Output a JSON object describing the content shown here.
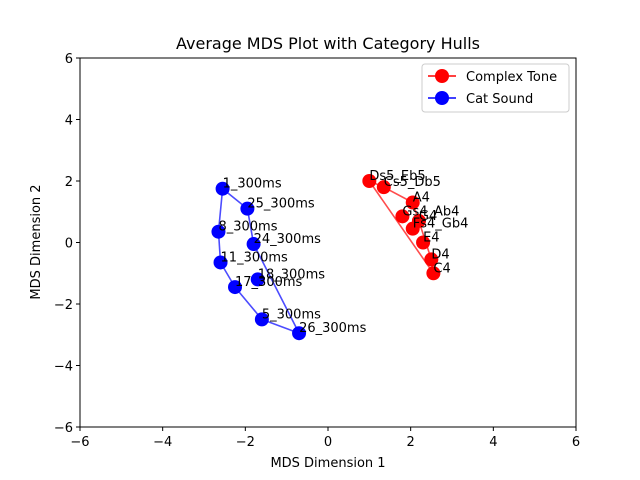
{
  "chart_data": {
    "type": "scatter",
    "title": "Average MDS Plot with Category Hulls",
    "xlabel": "MDS Dimension 1",
    "ylabel": "MDS Dimension 2",
    "xlim": [
      -6,
      6
    ],
    "ylim": [
      -6,
      6
    ],
    "xticks": [
      -6,
      -4,
      -2,
      0,
      2,
      4,
      6
    ],
    "yticks": [
      -6,
      -4,
      -2,
      0,
      2,
      4,
      6
    ],
    "grid": false,
    "legend_position": "top-right",
    "series": [
      {
        "name": "Complex Tone",
        "color": "#ff0000",
        "points": [
          {
            "label": "Ds5_Eb5",
            "x": 1.0,
            "y": 2.0
          },
          {
            "label": "Cs5_Db5",
            "x": 1.35,
            "y": 1.8
          },
          {
            "label": "A4",
            "x": 2.05,
            "y": 1.3
          },
          {
            "label": "Gs4_Ab4",
            "x": 1.8,
            "y": 0.85
          },
          {
            "label": "G4",
            "x": 2.2,
            "y": 0.7
          },
          {
            "label": "Fs4_Gb4",
            "x": 2.05,
            "y": 0.45
          },
          {
            "label": "E4",
            "x": 2.3,
            "y": 0.0
          },
          {
            "label": "D4",
            "x": 2.5,
            "y": -0.55
          },
          {
            "label": "C4",
            "x": 2.55,
            "y": -1.0
          }
        ],
        "hull": [
          "Ds5_Eb5",
          "Cs5_Db5",
          "A4",
          "G4",
          "D4",
          "C4"
        ]
      },
      {
        "name": "Cat Sound",
        "color": "#0000ff",
        "points": [
          {
            "label": "1_300ms",
            "x": -2.55,
            "y": 1.75
          },
          {
            "label": "25_300ms",
            "x": -1.95,
            "y": 1.1
          },
          {
            "label": "8_300ms",
            "x": -2.65,
            "y": 0.35
          },
          {
            "label": "24_300ms",
            "x": -1.8,
            "y": -0.05
          },
          {
            "label": "11_300ms",
            "x": -2.6,
            "y": -0.65
          },
          {
            "label": "18_300ms",
            "x": -1.7,
            "y": -1.2
          },
          {
            "label": "17_300ms",
            "x": -2.25,
            "y": -1.45
          },
          {
            "label": "5_300ms",
            "x": -1.6,
            "y": -2.5
          },
          {
            "label": "26_300ms",
            "x": -0.7,
            "y": -2.95
          }
        ],
        "hull": [
          "1_300ms",
          "25_300ms",
          "24_300ms",
          "26_300ms",
          "5_300ms",
          "17_300ms",
          "11_300ms",
          "8_300ms"
        ]
      }
    ]
  }
}
